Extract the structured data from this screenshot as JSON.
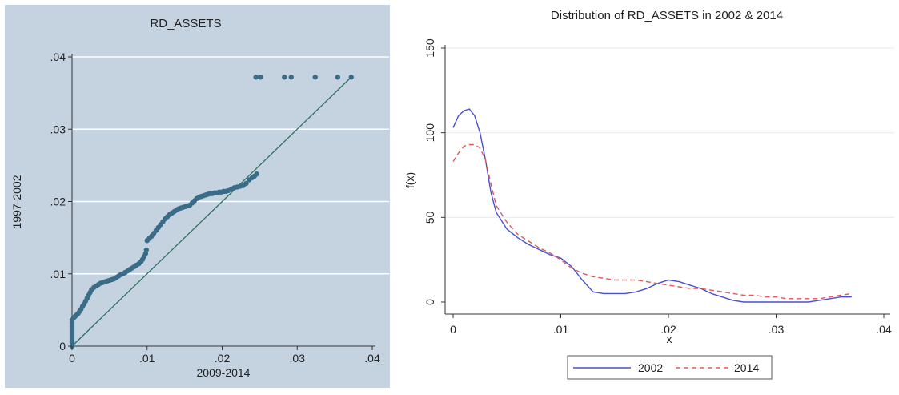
{
  "chart_data": [
    {
      "type": "scatter",
      "title": "RD_ASSETS",
      "xlabel": "2009-2014",
      "ylabel": "1997-2002",
      "xlim": [
        0,
        0.04
      ],
      "ylim": [
        0,
        0.04
      ],
      "x_ticks": [
        "0",
        ".01",
        ".02",
        ".03",
        ".04"
      ],
      "y_ticks": [
        "0",
        ".01",
        ".02",
        ".03",
        ".04"
      ],
      "grid": true,
      "background": "#c5d3e0",
      "marker_color": "#3a6c88",
      "line_color": "#2f7062",
      "reference_line": {
        "from": [
          0,
          0
        ],
        "to": [
          0.0372,
          0.0372
        ]
      },
      "points": [
        [
          0,
          0.0
        ],
        [
          0,
          0.0003
        ],
        [
          0,
          0.0006
        ],
        [
          0,
          0.0009
        ],
        [
          0,
          0.0012
        ],
        [
          0,
          0.0015
        ],
        [
          0,
          0.0018
        ],
        [
          0,
          0.0021
        ],
        [
          0,
          0.0024
        ],
        [
          0,
          0.0027
        ],
        [
          0,
          0.003
        ],
        [
          0,
          0.0033
        ],
        [
          0,
          0.0036
        ],
        [
          0.0002,
          0.0039
        ],
        [
          0.0004,
          0.0041
        ],
        [
          0.0006,
          0.0043
        ],
        [
          0.0008,
          0.0045
        ],
        [
          0.001,
          0.0048
        ],
        [
          0.0012,
          0.0051
        ],
        [
          0.0014,
          0.0055
        ],
        [
          0.0016,
          0.0058
        ],
        [
          0.0018,
          0.0062
        ],
        [
          0.002,
          0.0066
        ],
        [
          0.0022,
          0.007
        ],
        [
          0.0024,
          0.0074
        ],
        [
          0.0026,
          0.0078
        ],
        [
          0.0029,
          0.0081
        ],
        [
          0.0032,
          0.0083
        ],
        [
          0.0035,
          0.0085
        ],
        [
          0.0038,
          0.0087
        ],
        [
          0.0041,
          0.0088
        ],
        [
          0.0044,
          0.0089
        ],
        [
          0.0047,
          0.009
        ],
        [
          0.005,
          0.0091
        ],
        [
          0.0053,
          0.0092
        ],
        [
          0.0056,
          0.0093
        ],
        [
          0.0059,
          0.0095
        ],
        [
          0.0062,
          0.0097
        ],
        [
          0.0065,
          0.0099
        ],
        [
          0.0068,
          0.01
        ],
        [
          0.0071,
          0.0102
        ],
        [
          0.0074,
          0.0104
        ],
        [
          0.0077,
          0.0106
        ],
        [
          0.008,
          0.0108
        ],
        [
          0.0083,
          0.011
        ],
        [
          0.0086,
          0.0112
        ],
        [
          0.0089,
          0.0114
        ],
        [
          0.0092,
          0.0117
        ],
        [
          0.0094,
          0.012
        ],
        [
          0.0096,
          0.0124
        ],
        [
          0.0098,
          0.0128
        ],
        [
          0.0099,
          0.0133
        ],
        [
          0.01,
          0.0146
        ],
        [
          0.0103,
          0.0149
        ],
        [
          0.0106,
          0.0152
        ],
        [
          0.0109,
          0.0156
        ],
        [
          0.0112,
          0.016
        ],
        [
          0.0115,
          0.0164
        ],
        [
          0.0118,
          0.0168
        ],
        [
          0.0121,
          0.0172
        ],
        [
          0.0124,
          0.0176
        ],
        [
          0.0127,
          0.0179
        ],
        [
          0.013,
          0.0182
        ],
        [
          0.0133,
          0.0184
        ],
        [
          0.0136,
          0.0186
        ],
        [
          0.0139,
          0.0188
        ],
        [
          0.0142,
          0.019
        ],
        [
          0.0145,
          0.0191
        ],
        [
          0.0148,
          0.0192
        ],
        [
          0.0151,
          0.0193
        ],
        [
          0.0154,
          0.0194
        ],
        [
          0.0157,
          0.0195
        ],
        [
          0.016,
          0.0198
        ],
        [
          0.0163,
          0.0201
        ],
        [
          0.0166,
          0.0204
        ],
        [
          0.0169,
          0.0206
        ],
        [
          0.0172,
          0.0207
        ],
        [
          0.0175,
          0.0208
        ],
        [
          0.0178,
          0.0209
        ],
        [
          0.0181,
          0.021
        ],
        [
          0.0184,
          0.0211
        ],
        [
          0.0187,
          0.0211
        ],
        [
          0.019,
          0.0212
        ],
        [
          0.0193,
          0.0212
        ],
        [
          0.0196,
          0.0213
        ],
        [
          0.0199,
          0.0213
        ],
        [
          0.0202,
          0.0214
        ],
        [
          0.0205,
          0.0214
        ],
        [
          0.0208,
          0.0215
        ],
        [
          0.0212,
          0.0217
        ],
        [
          0.0216,
          0.0219
        ],
        [
          0.022,
          0.022
        ],
        [
          0.0224,
          0.0221
        ],
        [
          0.0228,
          0.0222
        ],
        [
          0.0232,
          0.0225
        ],
        [
          0.0236,
          0.023
        ],
        [
          0.024,
          0.0233
        ],
        [
          0.0243,
          0.0235
        ],
        [
          0.0246,
          0.0238
        ],
        [
          0.0245,
          0.0372
        ],
        [
          0.0251,
          0.0372
        ],
        [
          0.0283,
          0.0372
        ],
        [
          0.0292,
          0.0372
        ],
        [
          0.0324,
          0.0372
        ],
        [
          0.0354,
          0.0372
        ],
        [
          0.0372,
          0.0372
        ]
      ]
    },
    {
      "type": "line",
      "title": "Distribution of RD_ASSETS in 2002 & 2014",
      "xlabel": "x",
      "ylabel": "f(x)",
      "xlim": [
        0,
        0.04
      ],
      "ylim": [
        0,
        150
      ],
      "x_ticks": [
        "0",
        ".01",
        ".02",
        ".03",
        ".04"
      ],
      "y_ticks": [
        "0",
        "50",
        "100",
        "150"
      ],
      "grid": true,
      "legend_position": "bottom",
      "series": [
        {
          "name": "2002",
          "color": "#4a4fd0",
          "dash": "solid",
          "points": [
            [
              0,
              103
            ],
            [
              0.0005,
              110
            ],
            [
              0.001,
              113
            ],
            [
              0.0015,
              114
            ],
            [
              0.002,
              110
            ],
            [
              0.0025,
              100
            ],
            [
              0.003,
              84
            ],
            [
              0.0035,
              65
            ],
            [
              0.004,
              53
            ],
            [
              0.005,
              43
            ],
            [
              0.006,
              38
            ],
            [
              0.007,
              34
            ],
            [
              0.008,
              31
            ],
            [
              0.009,
              28
            ],
            [
              0.01,
              26
            ],
            [
              0.011,
              21
            ],
            [
              0.012,
              13
            ],
            [
              0.013,
              6
            ],
            [
              0.014,
              5
            ],
            [
              0.015,
              5
            ],
            [
              0.016,
              5
            ],
            [
              0.017,
              6
            ],
            [
              0.018,
              8
            ],
            [
              0.019,
              11
            ],
            [
              0.02,
              13
            ],
            [
              0.021,
              12
            ],
            [
              0.022,
              10
            ],
            [
              0.023,
              8
            ],
            [
              0.024,
              5
            ],
            [
              0.025,
              3
            ],
            [
              0.026,
              1
            ],
            [
              0.027,
              0
            ],
            [
              0.028,
              0
            ],
            [
              0.03,
              0
            ],
            [
              0.032,
              0
            ],
            [
              0.033,
              0
            ],
            [
              0.034,
              1
            ],
            [
              0.035,
              2
            ],
            [
              0.036,
              3
            ],
            [
              0.037,
              3
            ]
          ]
        },
        {
          "name": "2014",
          "color": "#e05a5a",
          "dash": "dashed",
          "points": [
            [
              0,
              83
            ],
            [
              0.0005,
              88
            ],
            [
              0.001,
              92
            ],
            [
              0.0015,
              93
            ],
            [
              0.002,
              93
            ],
            [
              0.0025,
              91
            ],
            [
              0.003,
              84
            ],
            [
              0.0035,
              70
            ],
            [
              0.004,
              57
            ],
            [
              0.005,
              47
            ],
            [
              0.006,
              40
            ],
            [
              0.007,
              36
            ],
            [
              0.008,
              32
            ],
            [
              0.009,
              29
            ],
            [
              0.01,
              25
            ],
            [
              0.011,
              20
            ],
            [
              0.012,
              17
            ],
            [
              0.013,
              15
            ],
            [
              0.014,
              14
            ],
            [
              0.015,
              13
            ],
            [
              0.016,
              13
            ],
            [
              0.017,
              13
            ],
            [
              0.018,
              12
            ],
            [
              0.019,
              11
            ],
            [
              0.02,
              10
            ],
            [
              0.021,
              9
            ],
            [
              0.022,
              8
            ],
            [
              0.023,
              8
            ],
            [
              0.024,
              7
            ],
            [
              0.025,
              6
            ],
            [
              0.026,
              5
            ],
            [
              0.027,
              4
            ],
            [
              0.028,
              4
            ],
            [
              0.029,
              3
            ],
            [
              0.03,
              3
            ],
            [
              0.031,
              2
            ],
            [
              0.032,
              2
            ],
            [
              0.033,
              2
            ],
            [
              0.034,
              2
            ],
            [
              0.035,
              3
            ],
            [
              0.036,
              4
            ],
            [
              0.037,
              5
            ]
          ]
        }
      ]
    }
  ]
}
